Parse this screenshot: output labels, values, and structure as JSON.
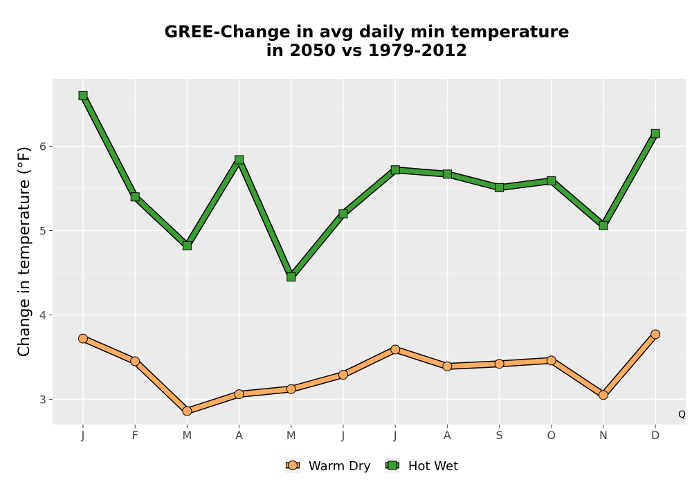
{
  "chart_data": {
    "type": "line",
    "title_line1": "GREE-Change in avg daily min temperature",
    "title_line2": "in 2050 vs 1979-2012",
    "xlabel": "",
    "ylabel": "Change in temperature (°F)",
    "categories": [
      "J",
      "F",
      "M",
      "A",
      "M",
      "J",
      "J",
      "A",
      "S",
      "O",
      "N",
      "D"
    ],
    "ylim": [
      2.7,
      6.8
    ],
    "yticks": [
      3,
      4,
      5,
      6
    ],
    "grid": true,
    "legend_position": "bottom",
    "corner_text": "Q",
    "series": [
      {
        "name": "Warm Dry",
        "marker": "circle",
        "color": "#fdac62",
        "values": [
          3.72,
          3.45,
          2.86,
          3.06,
          3.12,
          3.29,
          3.59,
          3.39,
          3.42,
          3.46,
          3.05,
          3.77
        ]
      },
      {
        "name": "Hot Wet",
        "marker": "square",
        "color": "#3c9e35",
        "values": [
          6.6,
          5.4,
          4.82,
          5.84,
          4.45,
          5.2,
          5.72,
          5.67,
          5.51,
          5.59,
          5.06,
          6.15
        ]
      }
    ]
  }
}
